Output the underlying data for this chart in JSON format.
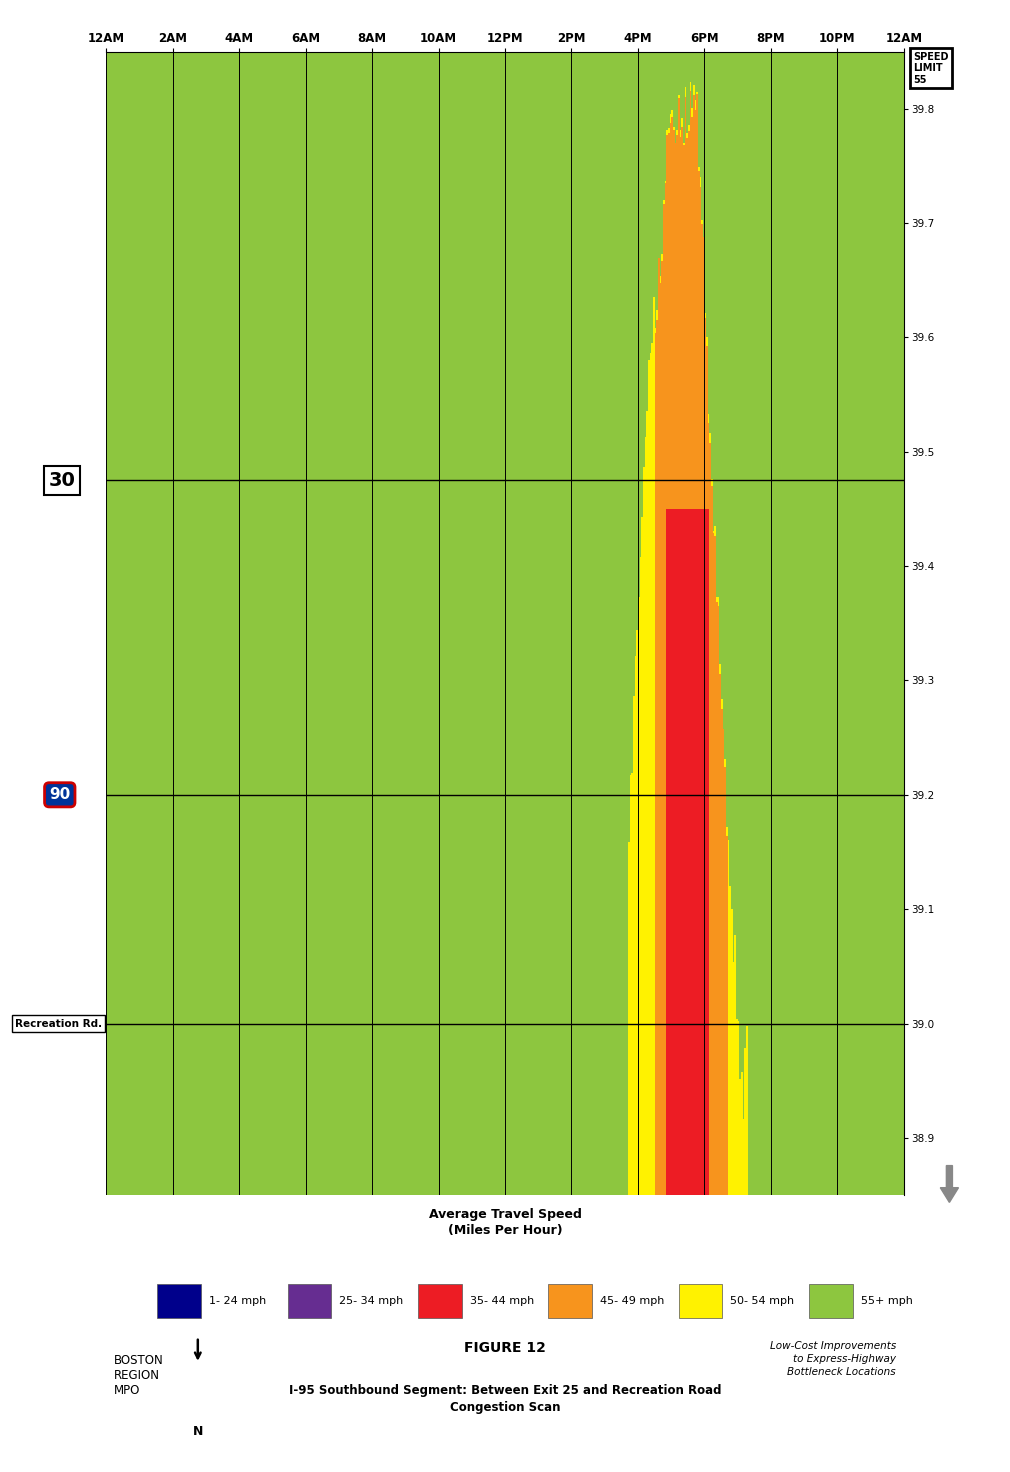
{
  "title": "FIGURE 12",
  "subtitle": "I-95 Southbound Segment: Between Exit 25 and Recreation Road\nCongestion Scan",
  "org": "BOSTON\nREGION\nMPO",
  "report_title": "Low-Cost Improvements\nto Express-Highway\nBottleneck Locations",
  "x_labels": [
    "12AM",
    "2AM",
    "4AM",
    "6AM",
    "8AM",
    "10AM",
    "12PM",
    "2PM",
    "4PM",
    "6PM",
    "8PM",
    "10PM",
    "12AM"
  ],
  "x_ticks": [
    0,
    2,
    4,
    6,
    8,
    10,
    12,
    14,
    16,
    18,
    20,
    22,
    24
  ],
  "y_min": 38.85,
  "y_max": 39.85,
  "y_ticks": [
    38.9,
    39.0,
    39.1,
    39.2,
    39.3,
    39.4,
    39.5,
    39.6,
    39.7,
    39.8
  ],
  "speed_limit": 55,
  "horizontal_lines": [
    39.475,
    39.2,
    39.0
  ],
  "colors": {
    "green": "#8DC63F",
    "yellow": "#FFF200",
    "orange": "#F7941D",
    "red": "#ED1C24",
    "dark_blue": "#00008B",
    "purple": "#662D91",
    "background": "#ffffff"
  },
  "legend": [
    {
      "label": "1- 24 mph",
      "color": "#00008B"
    },
    {
      "label": "25- 34 mph",
      "color": "#662D91"
    },
    {
      "label": "35- 44 mph",
      "color": "#ED1C24"
    },
    {
      "label": "45- 49 mph",
      "color": "#F7941D"
    },
    {
      "label": "50- 54 mph",
      "color": "#FFF200"
    },
    {
      "label": "55+ mph",
      "color": "#8DC63F"
    }
  ],
  "legend_title": "Average Travel Speed\n(Miles Per Hour)"
}
